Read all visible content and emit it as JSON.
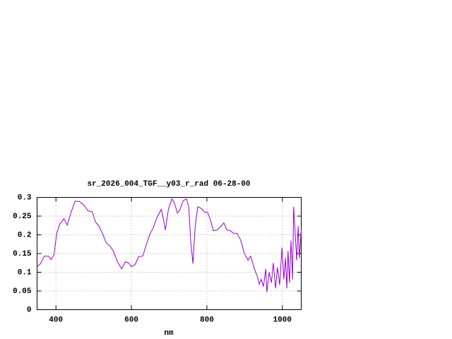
{
  "chart_data": {
    "type": "line",
    "title": "sr_2026_004_TGF__y03_r_rad 06-28-00",
    "x_label": "nm",
    "xlim": [
      350,
      1050
    ],
    "xticks": [
      400,
      600,
      800,
      1000
    ],
    "ylim": [
      0,
      0.3
    ],
    "yticks": [
      0,
      0.05,
      0.1,
      0.15,
      0.2,
      0.25,
      0.3
    ],
    "grid": true,
    "x": [
      350,
      359,
      369,
      380,
      387,
      395,
      402,
      410,
      421,
      430,
      440,
      451,
      462,
      473,
      485,
      496,
      505,
      514,
      524,
      533,
      543,
      552,
      563,
      574,
      584,
      593,
      600,
      610,
      619,
      630,
      640,
      649,
      658,
      668,
      679,
      685,
      690,
      698,
      707,
      714,
      722,
      729,
      737,
      746,
      752,
      757,
      763,
      769,
      776,
      786,
      795,
      802,
      810,
      817,
      827,
      836,
      845,
      853,
      862,
      871,
      880,
      890,
      899,
      909,
      916,
      926,
      933,
      939,
      944,
      950,
      956,
      959,
      965,
      971,
      976,
      982,
      987,
      993,
      999,
      1004,
      1008,
      1012,
      1015,
      1019,
      1023,
      1027,
      1030,
      1034,
      1038,
      1042,
      1045,
      1050
    ],
    "series": [
      {
        "color": "#9400d3",
        "values": [
          0.115,
          0.123,
          0.143,
          0.143,
          0.134,
          0.147,
          0.204,
          0.228,
          0.243,
          0.226,
          0.26,
          0.29,
          0.289,
          0.281,
          0.264,
          0.262,
          0.234,
          0.223,
          0.202,
          0.179,
          0.17,
          0.157,
          0.128,
          0.109,
          0.128,
          0.125,
          0.115,
          0.121,
          0.142,
          0.143,
          0.175,
          0.202,
          0.219,
          0.247,
          0.268,
          0.242,
          0.213,
          0.268,
          0.296,
          0.285,
          0.258,
          0.268,
          0.291,
          0.296,
          0.274,
          0.185,
          0.123,
          0.223,
          0.275,
          0.27,
          0.26,
          0.26,
          0.238,
          0.211,
          0.213,
          0.221,
          0.232,
          0.213,
          0.211,
          0.204,
          0.204,
          0.185,
          0.151,
          0.132,
          0.143,
          0.109,
          0.091,
          0.068,
          0.081,
          0.062,
          0.109,
          0.047,
          0.1,
          0.072,
          0.125,
          0.057,
          0.113,
          0.066,
          0.166,
          0.081,
          0.138,
          0.057,
          0.157,
          0.072,
          0.185,
          0.081,
          0.275,
          0.204,
          0.132,
          0.223,
          0.138,
          0.213
        ]
      }
    ]
  }
}
